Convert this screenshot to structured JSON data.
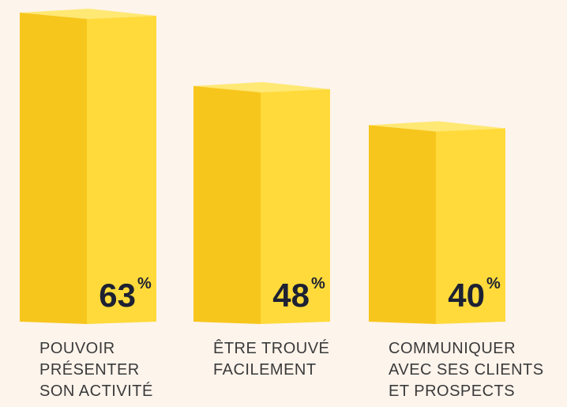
{
  "chart_data": {
    "type": "bar3d",
    "categories": [
      [
        "POUVOIR",
        "PRÉSENTER",
        "SON ACTIVITÉ"
      ],
      [
        "ÊTRE TROUVÉ",
        "FACILEMENT"
      ],
      [
        "COMMUNIQUER",
        "AVEC SES CLIENTS",
        "ET PROSPECTS"
      ]
    ],
    "values": [
      63,
      48,
      40
    ],
    "unit": "%",
    "color": "#f7c61c"
  }
}
